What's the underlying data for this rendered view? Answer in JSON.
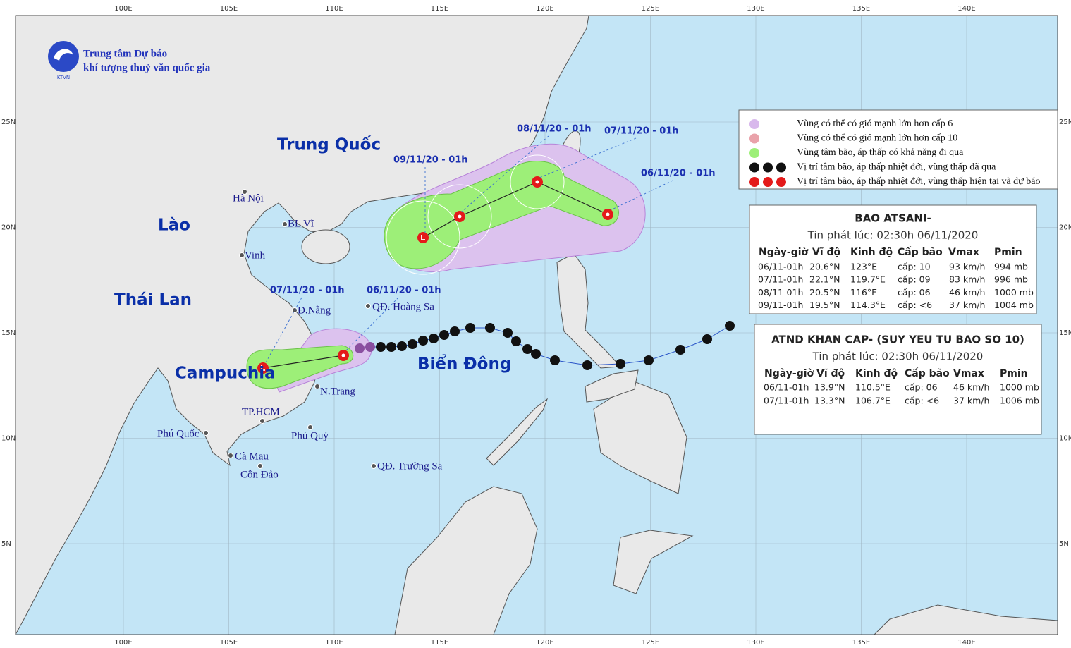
{
  "header": {
    "org_line1": "Trung tâm Dự báo",
    "org_line2": "khí tượng thuỷ văn quốc gia",
    "logo": "KTVN"
  },
  "map": {
    "lon_labels": [
      "100E",
      "105E",
      "110E",
      "115E",
      "120E",
      "125E",
      "130E",
      "135E",
      "140E"
    ],
    "lat_labels": [
      "25N",
      "20N",
      "15N",
      "10N",
      "5N"
    ],
    "regions": [
      "Trung Quốc",
      "Lào",
      "Thái Lan",
      "Campuchia",
      "Biển Đông"
    ],
    "places": [
      "Hà Nội",
      "BL Vĩ",
      "Vinh",
      "Đ.Nẵng",
      "QĐ. Hoàng Sa",
      "N.Trang",
      "TP.HCM",
      "Phú Quốc",
      "Phú Quý",
      "Cà Mau",
      "Côn Đảo",
      "QĐ. Trường Sa"
    ],
    "forecast_times": [
      "09/11/20 - 01h",
      "08/11/20 - 01h",
      "07/11/20 - 01h",
      "06/11/20 - 01h",
      "07/11/20 - 01h",
      "06/11/20 - 01h"
    ]
  },
  "legend": [
    "Vùng có thể có gió mạnh lớn hơn cấp 6",
    "Vùng có thể có gió mạnh lớn hơn cấp 10",
    "Vùng tâm bão, áp thấp có khả năng đi qua",
    "Vị trí tâm bão, áp thấp nhiệt đới, vùng thấp đã qua",
    "Vị trí tâm bão, áp thấp nhiệt đới, vùng thấp hiện tại và dự báo"
  ],
  "tables": [
    {
      "title": "BAO ATSANI-",
      "issued": "Tin phát lúc: 02:30h 06/11/2020",
      "headers": [
        "Ngày-giờ",
        "Vĩ độ",
        "Kinh độ",
        "Cấp bão",
        "Vmax",
        "Pmin"
      ],
      "rows": [
        [
          "06/11-01h",
          "20.6°N",
          "123°E",
          "cấp: 10",
          "93 km/h",
          "994 mb"
        ],
        [
          "07/11-01h",
          "22.1°N",
          "119.7°E",
          "cấp: 09",
          "83 km/h",
          "996 mb"
        ],
        [
          "08/11-01h",
          "20.5°N",
          "116°E",
          "cấp: 06",
          "46 km/h",
          "1000 mb"
        ],
        [
          "09/11-01h",
          "19.5°N",
          "114.3°E",
          "cấp: <6",
          "37 km/h",
          "1004 mb"
        ]
      ]
    },
    {
      "title": "ATND KHAN CAP- (SUY YEU TU BAO SO 10)",
      "issued": "Tin phát lúc: 02:30h 06/11/2020",
      "headers": [
        "Ngày-giờ",
        "Vĩ độ",
        "Kinh độ",
        "Cấp bão",
        "Vmax",
        "Pmin"
      ],
      "rows": [
        [
          "06/11-01h",
          "13.9°N",
          "110.5°E",
          "cấp: 06",
          "46 km/h",
          "1000 mb"
        ],
        [
          "07/11-01h",
          "13.3°N",
          "106.7°E",
          "cấp: <6",
          "37 km/h",
          "1006 mb"
        ]
      ]
    }
  ]
}
